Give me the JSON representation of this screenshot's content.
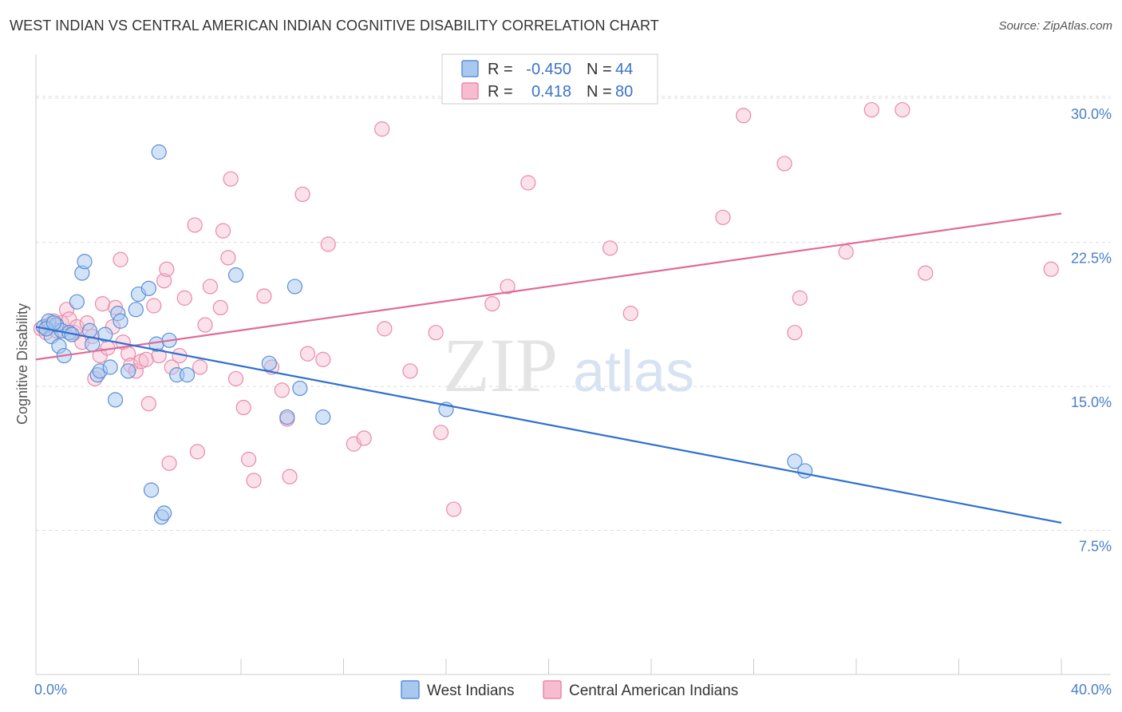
{
  "title": "WEST INDIAN VS CENTRAL AMERICAN INDIAN COGNITIVE DISABILITY CORRELATION CHART",
  "source": "Source: ZipAtlas.com",
  "watermark": {
    "zip": "ZIP",
    "atlas": "atlas"
  },
  "colors": {
    "blue_fill": "#a8c8f0",
    "blue_stroke": "#5b8fd6",
    "blue_line": "#2f6fd1",
    "pink_fill": "#f7bcd0",
    "pink_stroke": "#e88aaa",
    "pink_line": "#e06b97",
    "tick_text": "#4a7fc8",
    "grid": "#dddddd"
  },
  "legend": {
    "rows": [
      {
        "r_label": "R =",
        "r_value": "-0.450",
        "n_label": "N =",
        "n_value": "44"
      },
      {
        "r_label": "R =",
        "r_value": " 0.418",
        "n_label": "N =",
        "n_value": "80"
      }
    ]
  },
  "chart_data": {
    "type": "scatter",
    "xlabel": "",
    "ylabel": "Cognitive Disability",
    "xlim": [
      0,
      40
    ],
    "ylim": [
      0,
      32
    ],
    "x_tick_labels": [
      "0.0%",
      "40.0%"
    ],
    "y_ticks": [
      7.5,
      15.0,
      22.5,
      30.0
    ],
    "y_tick_labels": [
      "7.5%",
      "15.0%",
      "22.5%",
      "30.0%"
    ],
    "grid": "horizontal dashed",
    "legend_placement": "bottom",
    "series": [
      {
        "name": "West Indians",
        "trend": {
          "x": [
            0,
            40
          ],
          "y": [
            18.1,
            7.9
          ]
        },
        "points": [
          [
            0.3,
            18.1
          ],
          [
            0.5,
            18.4
          ],
          [
            0.6,
            17.6
          ],
          [
            0.8,
            18.2
          ],
          [
            0.9,
            17.1
          ],
          [
            1.0,
            17.9
          ],
          [
            1.1,
            16.6
          ],
          [
            1.3,
            17.8
          ],
          [
            1.4,
            17.7
          ],
          [
            1.6,
            19.4
          ],
          [
            1.8,
            20.9
          ],
          [
            1.9,
            21.5
          ],
          [
            2.1,
            17.9
          ],
          [
            2.2,
            17.2
          ],
          [
            2.4,
            15.6
          ],
          [
            2.5,
            15.8
          ],
          [
            2.7,
            17.7
          ],
          [
            2.9,
            16.0
          ],
          [
            3.1,
            14.3
          ],
          [
            3.2,
            18.8
          ],
          [
            3.3,
            18.4
          ],
          [
            3.6,
            15.8
          ],
          [
            3.9,
            19.0
          ],
          [
            4.0,
            19.8
          ],
          [
            4.4,
            20.1
          ],
          [
            4.5,
            9.6
          ],
          [
            4.7,
            17.2
          ],
          [
            4.8,
            27.2
          ],
          [
            4.9,
            8.2
          ],
          [
            5.0,
            8.4
          ],
          [
            5.2,
            17.4
          ],
          [
            5.5,
            15.6
          ],
          [
            5.9,
            15.6
          ],
          [
            7.8,
            20.8
          ],
          [
            9.1,
            16.2
          ],
          [
            9.8,
            13.4
          ],
          [
            10.1,
            20.2
          ],
          [
            10.3,
            14.9
          ],
          [
            11.2,
            13.4
          ],
          [
            16.0,
            13.8
          ],
          [
            29.6,
            11.1
          ],
          [
            30.0,
            10.6
          ],
          [
            0.4,
            18.0
          ],
          [
            0.7,
            18.3
          ]
        ]
      },
      {
        "name": "Central American Indians",
        "trend": {
          "x": [
            0,
            40
          ],
          "y": [
            16.4,
            24.0
          ]
        },
        "points": [
          [
            0.2,
            18.0
          ],
          [
            0.4,
            17.8
          ],
          [
            0.5,
            18.2
          ],
          [
            0.7,
            18.4
          ],
          [
            0.8,
            17.9
          ],
          [
            1.0,
            18.3
          ],
          [
            1.2,
            19.0
          ],
          [
            1.3,
            18.5
          ],
          [
            1.5,
            17.8
          ],
          [
            1.6,
            18.1
          ],
          [
            1.8,
            17.3
          ],
          [
            2.0,
            18.3
          ],
          [
            2.2,
            17.6
          ],
          [
            2.3,
            15.4
          ],
          [
            2.5,
            16.6
          ],
          [
            2.6,
            19.3
          ],
          [
            2.8,
            17.0
          ],
          [
            3.0,
            18.1
          ],
          [
            3.1,
            19.1
          ],
          [
            3.3,
            21.6
          ],
          [
            3.4,
            17.3
          ],
          [
            3.6,
            16.7
          ],
          [
            3.7,
            16.1
          ],
          [
            3.9,
            15.8
          ],
          [
            4.1,
            16.3
          ],
          [
            4.3,
            16.4
          ],
          [
            4.4,
            14.1
          ],
          [
            4.6,
            19.2
          ],
          [
            4.8,
            16.6
          ],
          [
            5.0,
            20.5
          ],
          [
            5.1,
            21.1
          ],
          [
            5.2,
            11.0
          ],
          [
            5.3,
            16.0
          ],
          [
            5.6,
            16.6
          ],
          [
            5.8,
            19.6
          ],
          [
            6.2,
            23.4
          ],
          [
            6.3,
            11.6
          ],
          [
            6.4,
            16.0
          ],
          [
            6.6,
            18.2
          ],
          [
            6.8,
            20.2
          ],
          [
            7.2,
            19.1
          ],
          [
            7.3,
            23.1
          ],
          [
            7.5,
            21.7
          ],
          [
            7.6,
            25.8
          ],
          [
            7.8,
            15.4
          ],
          [
            8.1,
            13.9
          ],
          [
            8.3,
            11.2
          ],
          [
            8.5,
            10.1
          ],
          [
            8.9,
            19.7
          ],
          [
            9.2,
            16.0
          ],
          [
            9.6,
            14.8
          ],
          [
            9.9,
            10.3
          ],
          [
            9.8,
            13.3
          ],
          [
            10.4,
            25.0
          ],
          [
            10.6,
            16.7
          ],
          [
            11.2,
            16.4
          ],
          [
            11.4,
            22.4
          ],
          [
            12.4,
            12.0
          ],
          [
            12.8,
            12.3
          ],
          [
            13.5,
            28.4
          ],
          [
            13.6,
            18.0
          ],
          [
            14.6,
            15.8
          ],
          [
            15.6,
            17.8
          ],
          [
            15.8,
            12.6
          ],
          [
            16.3,
            8.6
          ],
          [
            17.8,
            19.3
          ],
          [
            18.4,
            20.2
          ],
          [
            19.2,
            25.6
          ],
          [
            22.4,
            22.2
          ],
          [
            23.2,
            18.8
          ],
          [
            26.8,
            23.8
          ],
          [
            27.6,
            29.1
          ],
          [
            29.2,
            26.6
          ],
          [
            29.6,
            17.8
          ],
          [
            29.8,
            19.6
          ],
          [
            31.6,
            22.0
          ],
          [
            32.6,
            29.4
          ],
          [
            33.8,
            29.4
          ],
          [
            34.7,
            20.9
          ],
          [
            39.6,
            21.1
          ]
        ]
      }
    ]
  }
}
